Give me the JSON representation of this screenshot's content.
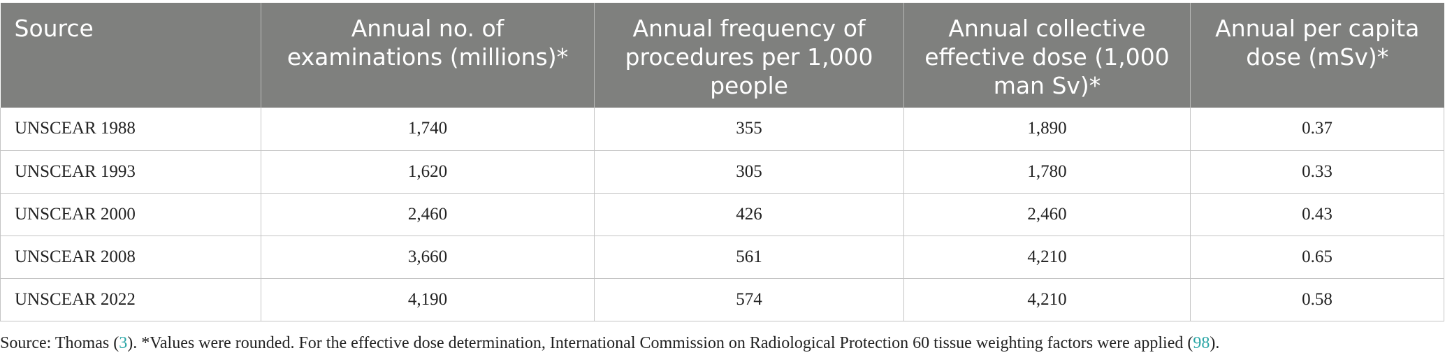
{
  "table": {
    "headers": [
      "Source",
      "Annual no. of examinations (millions)*",
      "Annual frequency of procedures per 1,000 people",
      "Annual collective effective dose (1,000 man Sv)*",
      "Annual per capita dose (mSv)*"
    ],
    "rows": [
      [
        "UNSCEAR 1988",
        "1,740",
        "355",
        "1,890",
        "0.37"
      ],
      [
        "UNSCEAR 1993",
        "1,620",
        "305",
        "1,780",
        "0.33"
      ],
      [
        "UNSCEAR 2000",
        "2,460",
        "426",
        "2,460",
        "0.43"
      ],
      [
        "UNSCEAR 2008",
        "3,660",
        "561",
        "4,210",
        "0.65"
      ],
      [
        "UNSCEAR 2022",
        "4,190",
        "574",
        "4,210",
        "0.58"
      ]
    ]
  },
  "footnote": {
    "prefix": "Source: Thomas (",
    "ref1": "3",
    "middle": "). *Values were rounded. For the effective dose determination, International Commission on Radiological Protection 60 tissue weighting factors were applied (",
    "ref2": "98",
    "suffix": ")."
  },
  "colors": {
    "header_bg": "#7f807e",
    "header_text": "#ffffff",
    "link": "#2aa6a6",
    "border": "#c4c4c4"
  }
}
